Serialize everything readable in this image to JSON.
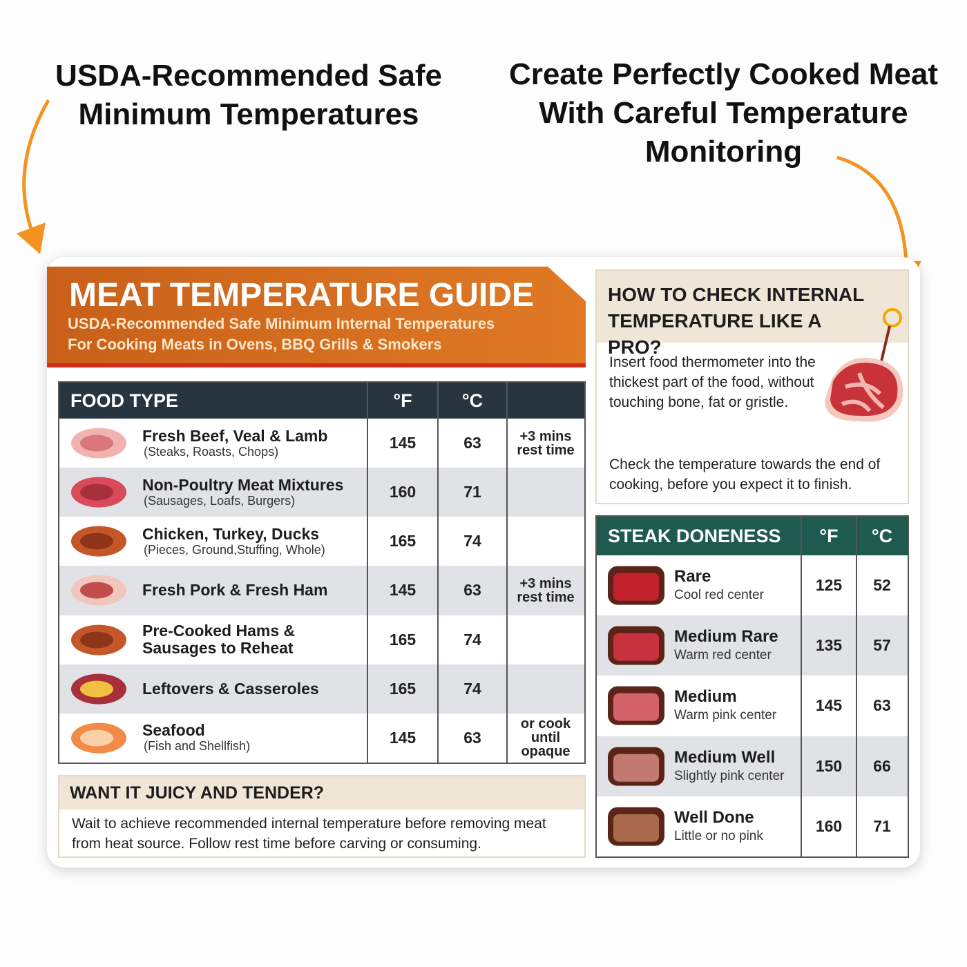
{
  "callouts": {
    "left": "USDA-Recommended Safe Minimum Temperatures",
    "right": "Create Perfectly Cooked Meat With Careful Temperature Monitoring"
  },
  "guide": {
    "title": "MEAT TEMPERATURE GUIDE",
    "subtitle": [
      "USDA-Recommended Safe Minimum Internal Temperatures",
      "For Cooking Meats in Ovens, BBQ Grills & Smokers"
    ]
  },
  "table": {
    "headers": [
      "FOOD TYPE",
      "°F",
      "°C"
    ],
    "rows": [
      {
        "name": "Fresh Beef, Veal & Lamb",
        "detail": "(Steaks, Roasts, Chops)",
        "f": 145,
        "c": 63,
        "note": "+3 mins rest time"
      },
      {
        "name": "Non-Poultry Meat Mixtures",
        "detail": "(Sausages, Loafs, Burgers)",
        "f": 160,
        "c": 71
      },
      {
        "name": "Chicken, Turkey, Ducks",
        "detail": "(Pieces, Ground,Stuffing, Whole)",
        "f": 165,
        "c": 74
      },
      {
        "name": "Fresh Pork & Fresh Ham",
        "f": 145,
        "c": 63,
        "note": "+3 mins rest time"
      },
      {
        "name": "Pre-Cooked Hams & Sausages to Reheat",
        "f": 165,
        "c": 74
      },
      {
        "name": "Leftovers & Casseroles",
        "f": 165,
        "c": 74
      },
      {
        "name": "Seafood",
        "detail": "(Fish and Shellfish)",
        "f": 145,
        "c": 63,
        "note": "or cook until opaque"
      }
    ]
  },
  "juicy": {
    "title": "WANT IT JUICY AND TENDER?",
    "text": "Wait to achieve recommended internal temperature before removing meat from heat source. Follow rest time before carving or consuming."
  },
  "howto": {
    "title": "HOW TO CHECK INTERNAL TEMPERATURE LIKE A PRO?",
    "paragraphs": [
      "Insert food thermometer into the thickest part of the food, without touching bone, fat or gristle.",
      "Check the temperature towards the end of cooking, before you expect it to finish."
    ]
  },
  "steak": {
    "headers": [
      "STEAK DONENESS",
      "°F",
      "°C"
    ],
    "rows": [
      {
        "name": "Rare",
        "desc": "Cool red center",
        "f": 125,
        "c": 52
      },
      {
        "name": "Medium Rare",
        "desc": "Warm red center",
        "f": 135,
        "c": 57
      },
      {
        "name": "Medium",
        "desc": "Warm pink center",
        "f": 145,
        "c": 63
      },
      {
        "name": "Medium Well",
        "desc": "Slightly pink center",
        "f": 150,
        "c": 66
      },
      {
        "name": "Well Done",
        "desc": "Little or no pink",
        "f": 160,
        "c": 71
      }
    ]
  }
}
